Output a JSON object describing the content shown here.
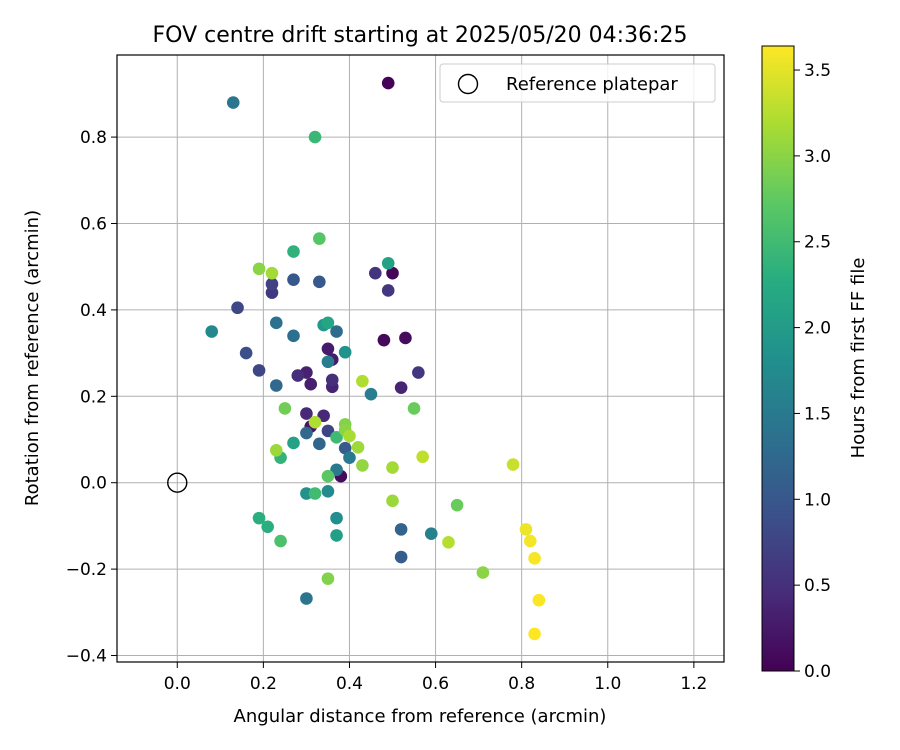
{
  "chart_data": {
    "type": "scatter",
    "title": "FOV centre drift starting at 2025/05/20 04:36:25",
    "xlabel": "Angular distance from reference (arcmin)",
    "ylabel": "Rotation from reference (arcmin)",
    "xlim": [
      -0.14,
      1.27
    ],
    "ylim": [
      -0.415,
      0.99
    ],
    "xticks": [
      "0.0",
      "0.2",
      "0.4",
      "0.6",
      "0.8",
      "1.0",
      "1.2"
    ],
    "yticks": [
      "−0.4",
      "−0.2",
      "0.0",
      "0.2",
      "0.4",
      "0.6",
      "0.8"
    ],
    "grid": true,
    "legend": {
      "position": "top-right",
      "entries": [
        "Reference platepar"
      ]
    },
    "colorbar": {
      "label": "Hours from first FF file",
      "colormap": "viridis",
      "range": [
        0,
        3.64
      ],
      "ticks": [
        "0.0",
        "0.5",
        "1.0",
        "1.5",
        "2.0",
        "2.5",
        "3.0",
        "3.5"
      ]
    },
    "reference_point": {
      "x": 0.0,
      "y": 0.0
    },
    "points": [
      {
        "x": 0.49,
        "y": 0.925,
        "c": 0.02
      },
      {
        "x": 0.5,
        "y": 0.485,
        "c": 0.05
      },
      {
        "x": 0.48,
        "y": 0.33,
        "c": 0.08
      },
      {
        "x": 0.53,
        "y": 0.335,
        "c": 0.12
      },
      {
        "x": 0.38,
        "y": 0.015,
        "c": 0.12
      },
      {
        "x": 0.31,
        "y": 0.13,
        "c": 0.22
      },
      {
        "x": 0.35,
        "y": 0.31,
        "c": 0.28
      },
      {
        "x": 0.36,
        "y": 0.285,
        "c": 0.3
      },
      {
        "x": 0.31,
        "y": 0.228,
        "c": 0.32
      },
      {
        "x": 0.3,
        "y": 0.255,
        "c": 0.35
      },
      {
        "x": 0.36,
        "y": 0.222,
        "c": 0.38
      },
      {
        "x": 0.52,
        "y": 0.22,
        "c": 0.38
      },
      {
        "x": 0.34,
        "y": 0.155,
        "c": 0.42
      },
      {
        "x": 0.3,
        "y": 0.16,
        "c": 0.42
      },
      {
        "x": 0.28,
        "y": 0.248,
        "c": 0.48
      },
      {
        "x": 0.36,
        "y": 0.238,
        "c": 0.5
      },
      {
        "x": 0.46,
        "y": 0.485,
        "c": 0.55
      },
      {
        "x": 0.49,
        "y": 0.445,
        "c": 0.6
      },
      {
        "x": 0.56,
        "y": 0.255,
        "c": 0.6
      },
      {
        "x": 0.22,
        "y": 0.44,
        "c": 0.62
      },
      {
        "x": 0.22,
        "y": 0.46,
        "c": 0.72
      },
      {
        "x": 0.35,
        "y": 0.12,
        "c": 0.75
      },
      {
        "x": 0.19,
        "y": 0.26,
        "c": 0.78
      },
      {
        "x": 0.14,
        "y": 0.405,
        "c": 0.8
      },
      {
        "x": 0.16,
        "y": 0.3,
        "c": 0.9
      },
      {
        "x": 0.27,
        "y": 0.47,
        "c": 1.0
      },
      {
        "x": 0.33,
        "y": 0.465,
        "c": 1.02
      },
      {
        "x": 0.39,
        "y": 0.08,
        "c": 1.05
      },
      {
        "x": 0.52,
        "y": -0.172,
        "c": 1.1
      },
      {
        "x": 0.52,
        "y": -0.108,
        "c": 1.18
      },
      {
        "x": 0.33,
        "y": 0.09,
        "c": 1.2
      },
      {
        "x": 0.3,
        "y": 0.115,
        "c": 1.25
      },
      {
        "x": 0.23,
        "y": 0.225,
        "c": 1.25
      },
      {
        "x": 0.37,
        "y": 0.35,
        "c": 1.3
      },
      {
        "x": 0.27,
        "y": 0.34,
        "c": 1.35
      },
      {
        "x": 0.23,
        "y": 0.37,
        "c": 1.38
      },
      {
        "x": 0.13,
        "y": 0.88,
        "c": 1.42
      },
      {
        "x": 0.3,
        "y": -0.268,
        "c": 1.42
      },
      {
        "x": 0.37,
        "y": 0.03,
        "c": 1.5
      },
      {
        "x": 0.4,
        "y": 0.058,
        "c": 1.5
      },
      {
        "x": 0.35,
        "y": 0.28,
        "c": 1.55
      },
      {
        "x": 0.45,
        "y": 0.205,
        "c": 1.55
      },
      {
        "x": 0.59,
        "y": -0.118,
        "c": 1.58
      },
      {
        "x": 0.08,
        "y": 0.35,
        "c": 1.72
      },
      {
        "x": 0.35,
        "y": -0.02,
        "c": 1.75
      },
      {
        "x": 0.37,
        "y": -0.082,
        "c": 1.8
      },
      {
        "x": 0.39,
        "y": 0.302,
        "c": 1.85
      },
      {
        "x": 0.3,
        "y": -0.025,
        "c": 1.85
      },
      {
        "x": 0.34,
        "y": 0.365,
        "c": 1.95
      },
      {
        "x": 0.37,
        "y": -0.122,
        "c": 2.05
      },
      {
        "x": 0.27,
        "y": 0.092,
        "c": 2.1
      },
      {
        "x": 0.49,
        "y": 0.508,
        "c": 2.1
      },
      {
        "x": 0.35,
        "y": 0.37,
        "c": 2.15
      },
      {
        "x": 0.19,
        "y": -0.082,
        "c": 2.3
      },
      {
        "x": 0.21,
        "y": -0.102,
        "c": 2.3
      },
      {
        "x": 0.27,
        "y": 0.535,
        "c": 2.35
      },
      {
        "x": 0.24,
        "y": 0.058,
        "c": 2.38
      },
      {
        "x": 0.32,
        "y": 0.8,
        "c": 2.45
      },
      {
        "x": 0.37,
        "y": 0.105,
        "c": 2.48
      },
      {
        "x": 0.32,
        "y": -0.025,
        "c": 2.5
      },
      {
        "x": 0.24,
        "y": -0.135,
        "c": 2.6
      },
      {
        "x": 0.33,
        "y": 0.565,
        "c": 2.68
      },
      {
        "x": 0.35,
        "y": 0.015,
        "c": 2.72
      },
      {
        "x": 0.55,
        "y": 0.172,
        "c": 2.8
      },
      {
        "x": 0.65,
        "y": -0.052,
        "c": 2.8
      },
      {
        "x": 0.25,
        "y": 0.172,
        "c": 2.85
      },
      {
        "x": 0.39,
        "y": 0.135,
        "c": 2.95
      },
      {
        "x": 0.35,
        "y": -0.222,
        "c": 2.95
      },
      {
        "x": 0.19,
        "y": 0.495,
        "c": 3.0
      },
      {
        "x": 0.39,
        "y": 0.122,
        "c": 3.0
      },
      {
        "x": 0.71,
        "y": -0.208,
        "c": 3.0
      },
      {
        "x": 0.43,
        "y": 0.04,
        "c": 3.05
      },
      {
        "x": 0.23,
        "y": 0.075,
        "c": 3.1
      },
      {
        "x": 0.5,
        "y": -0.042,
        "c": 3.1
      },
      {
        "x": 0.42,
        "y": 0.082,
        "c": 3.12
      },
      {
        "x": 0.22,
        "y": 0.485,
        "c": 3.15
      },
      {
        "x": 0.5,
        "y": 0.035,
        "c": 3.15
      },
      {
        "x": 0.4,
        "y": 0.108,
        "c": 3.18
      },
      {
        "x": 0.32,
        "y": 0.14,
        "c": 3.22
      },
      {
        "x": 0.43,
        "y": 0.235,
        "c": 3.22
      },
      {
        "x": 0.63,
        "y": -0.138,
        "c": 3.25
      },
      {
        "x": 0.57,
        "y": 0.06,
        "c": 3.3
      },
      {
        "x": 0.78,
        "y": 0.042,
        "c": 3.35
      },
      {
        "x": 0.81,
        "y": -0.108,
        "c": 3.55
      },
      {
        "x": 0.82,
        "y": -0.135,
        "c": 3.58
      },
      {
        "x": 0.83,
        "y": -0.175,
        "c": 3.6
      },
      {
        "x": 0.84,
        "y": -0.272,
        "c": 3.62
      },
      {
        "x": 0.83,
        "y": -0.35,
        "c": 3.64
      }
    ]
  }
}
